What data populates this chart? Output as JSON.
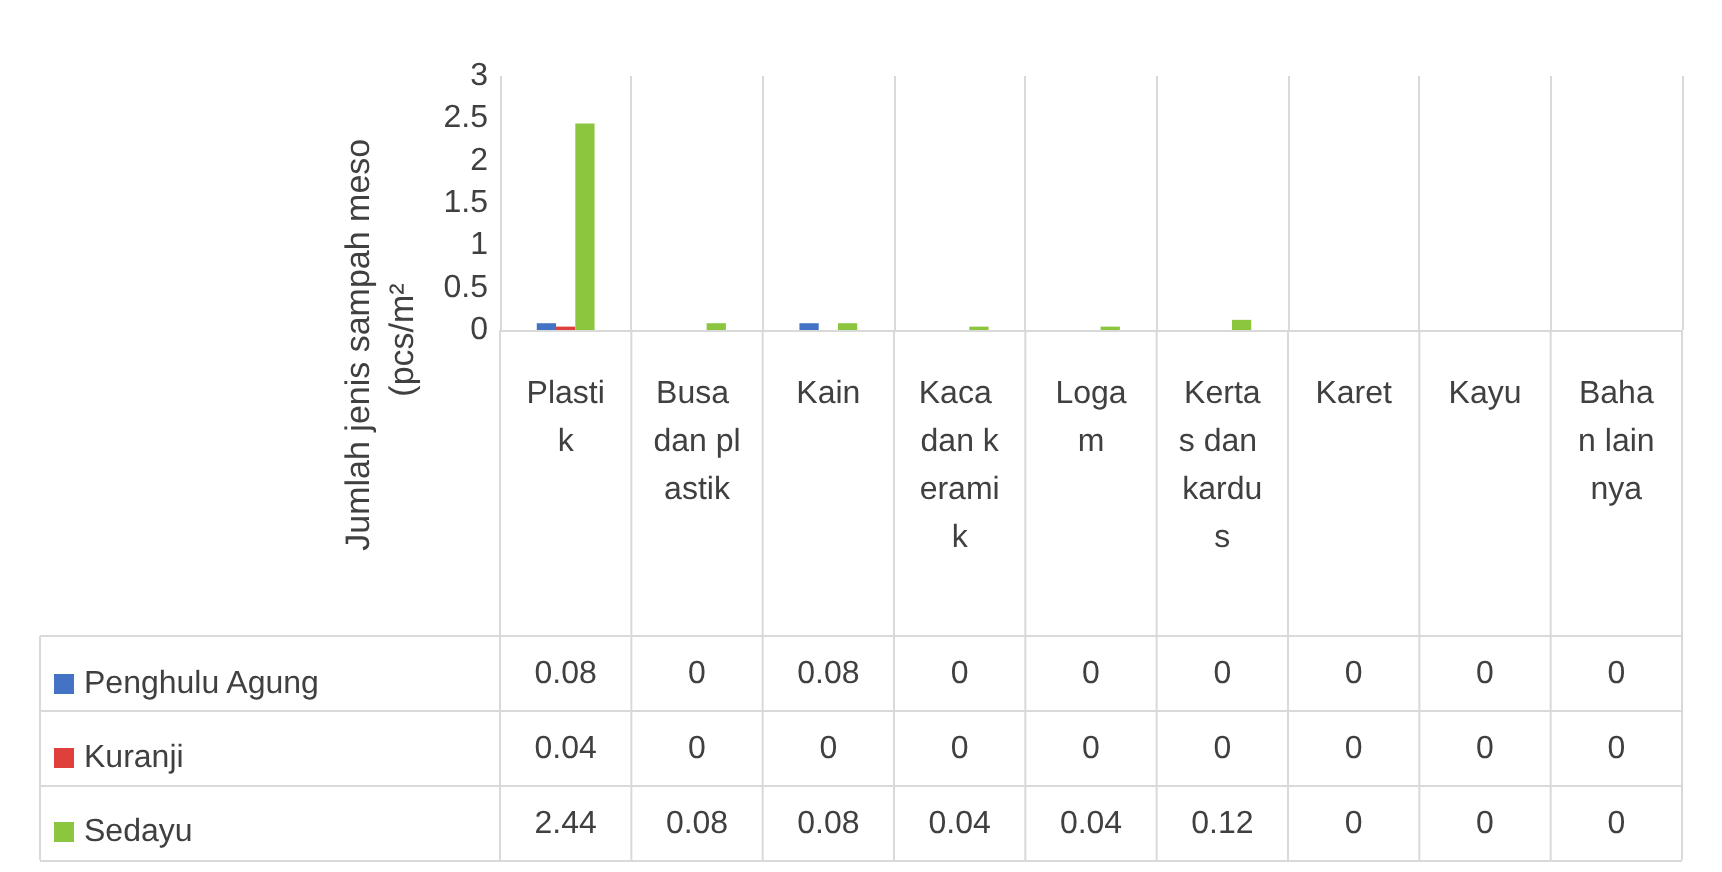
{
  "chart_data": {
    "type": "bar",
    "ylabel": "Jumlah jenis sampah meso (pcs/m²",
    "categories": [
      "Plastik",
      "Busa dan plastik",
      "Kain",
      "Kaca dan keramik",
      "Logam",
      "Kertas dan kardus",
      "Karet",
      "Kayu",
      "Bahan lainnya"
    ],
    "series": [
      {
        "name": "Penghulu Agung",
        "color": "#4472c4",
        "values": [
          0.08,
          0,
          0.08,
          0,
          0,
          0,
          0,
          0,
          0
        ]
      },
      {
        "name": "Kuranji",
        "color": "#e0403c",
        "values": [
          0.04,
          0,
          0,
          0,
          0,
          0,
          0,
          0,
          0
        ]
      },
      {
        "name": "Sedayu",
        "color": "#8cc63e",
        "values": [
          2.44,
          0.08,
          0.08,
          0.04,
          0.04,
          0.12,
          0,
          0,
          0
        ]
      }
    ],
    "ylim": [
      0,
      3
    ],
    "yticks": [
      0,
      0.5,
      1,
      1.5,
      2,
      2.5,
      3
    ],
    "grid": "x",
    "legend": "bottom",
    "data_labels": true
  }
}
